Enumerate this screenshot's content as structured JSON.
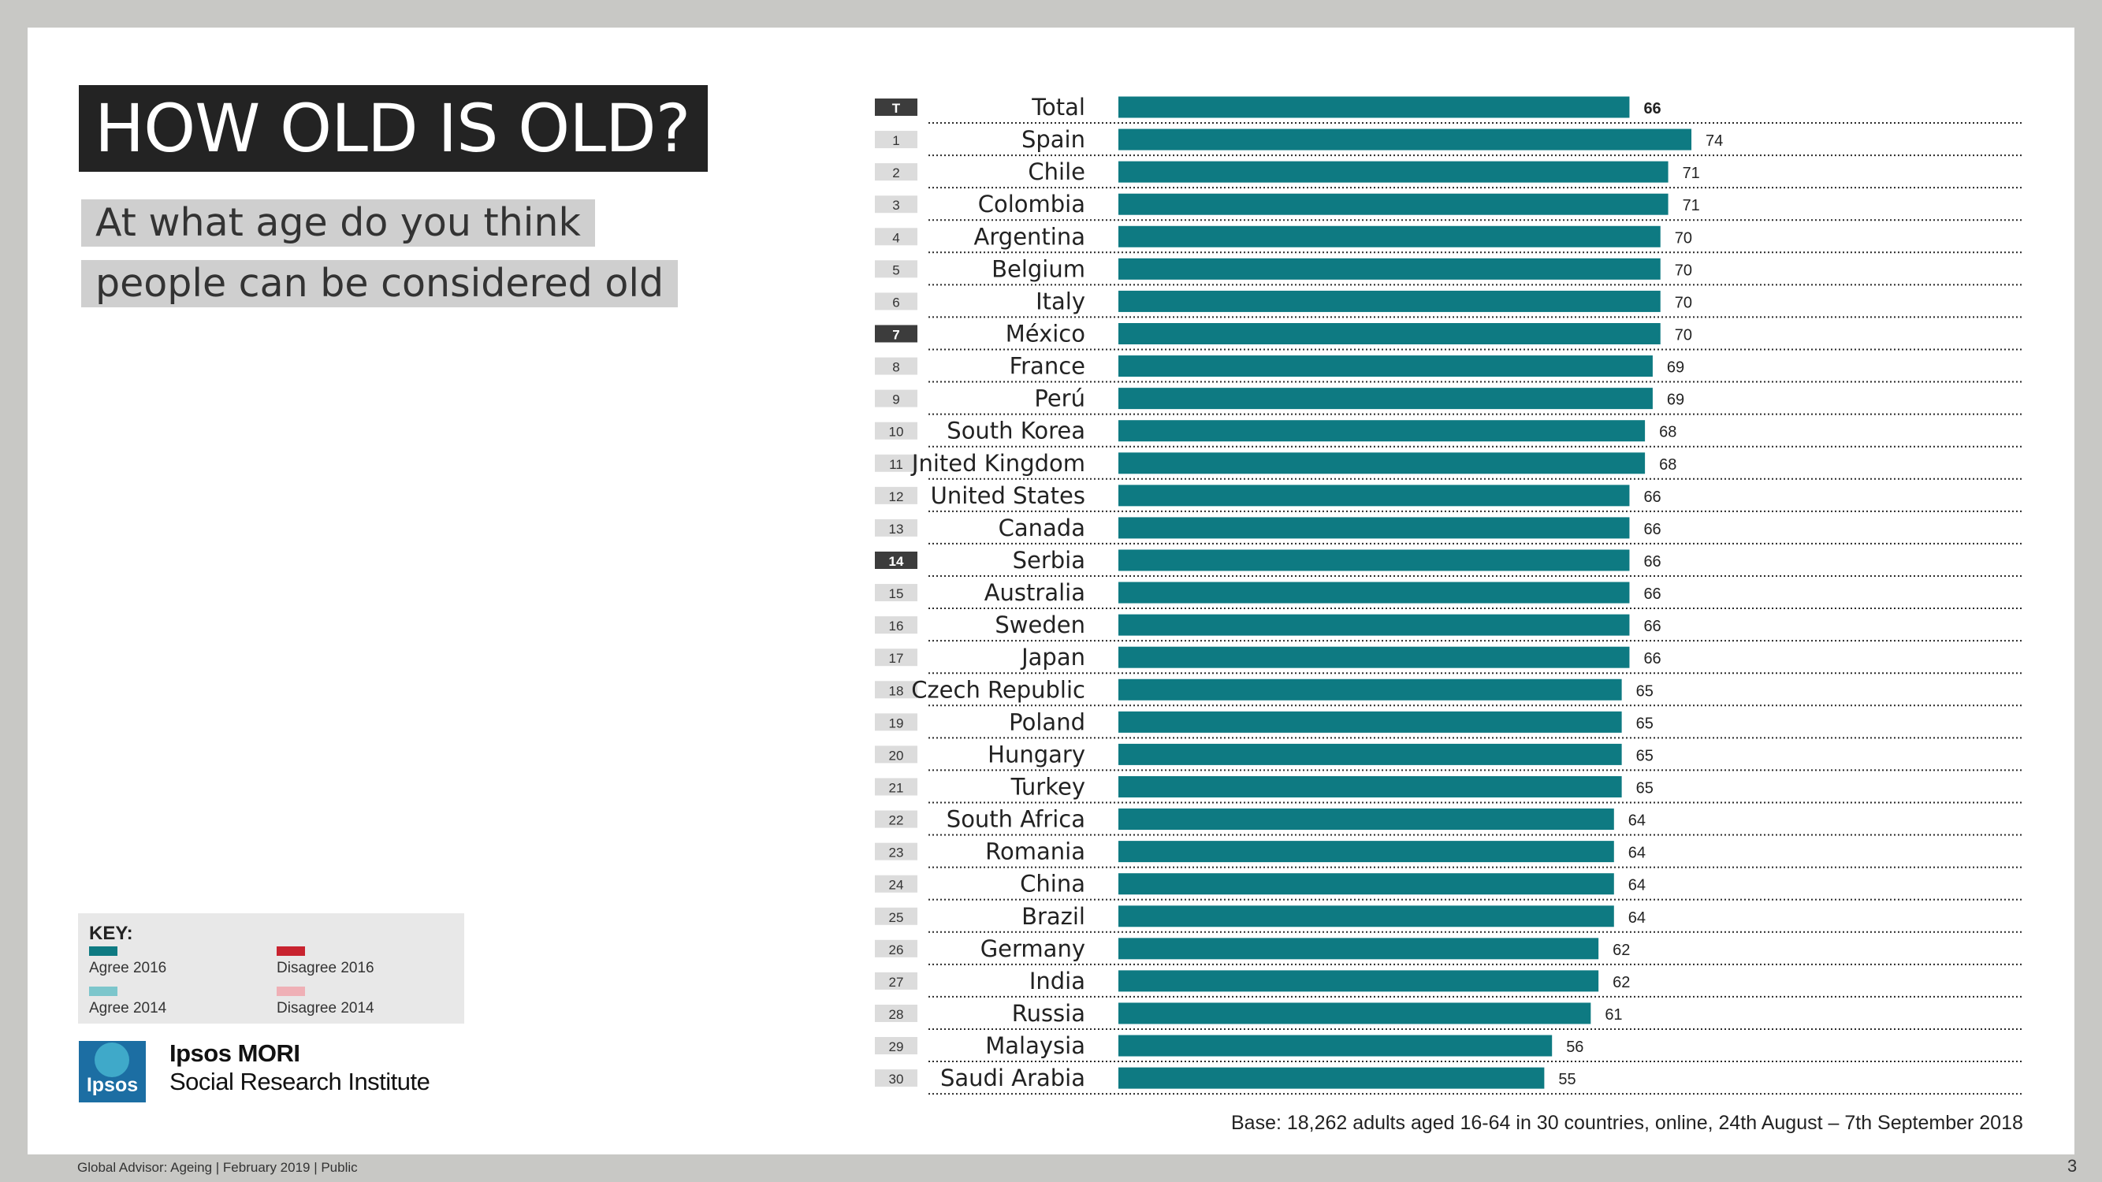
{
  "title": "HOW OLD IS OLD?",
  "subtitle_line1": "At what age do you think",
  "subtitle_line2": "people can be considered old",
  "colors": {
    "bar": "#0e7a82",
    "rank_badge": "#dcdcdc",
    "rank_badge_highlight": "#3c3c3c",
    "title_bg": "#232323",
    "agree_2016": "#0e7a82",
    "agree_2014": "#7cc6cc",
    "disagree_2016": "#c8232f",
    "disagree_2014": "#efb0b6"
  },
  "chart_data": {
    "type": "bar",
    "orientation": "horizontal",
    "rank_labels": [
      "T",
      "1",
      "2",
      "3",
      "4",
      "5",
      "6",
      "7",
      "8",
      "9",
      "10",
      "11",
      "12",
      "13",
      "14",
      "15",
      "16",
      "17",
      "18",
      "19",
      "20",
      "21",
      "22",
      "23",
      "24",
      "25",
      "26",
      "27",
      "28",
      "29",
      "30"
    ],
    "categories": [
      "Total",
      "Spain",
      "Chile",
      "Colombia",
      "Argentina",
      "Belgium",
      "Italy",
      "México",
      "France",
      "Perú",
      "South Korea",
      "Jnited Kingdom",
      "United States",
      "Canada",
      "Serbia",
      "Australia",
      "Sweden",
      "Japan",
      "Czech Republic",
      "Poland",
      "Hungary",
      "Turkey",
      "South Africa",
      "Romania",
      "China",
      "Brazil",
      "Germany",
      "India",
      "Russia",
      "Malaysia",
      "Saudi Arabia"
    ],
    "values": [
      66,
      74,
      71,
      71,
      70,
      70,
      70,
      70,
      69,
      69,
      68,
      68,
      66,
      66,
      66,
      66,
      66,
      66,
      65,
      65,
      65,
      65,
      64,
      64,
      64,
      64,
      62,
      62,
      61,
      56,
      55
    ],
    "highlight_ranks": [
      "T",
      "7",
      "14"
    ],
    "bold_value_categories": [
      "Total"
    ],
    "grid": false,
    "row_separators": "dotted"
  },
  "key": {
    "title": "KEY:",
    "items": [
      {
        "label": "Agree 2016"
      },
      {
        "label": "Disagree 2016"
      },
      {
        "label": "Agree 2014"
      },
      {
        "label": "Disagree 2014"
      }
    ]
  },
  "brand": {
    "logo_text": "Ipsos",
    "line1": "Ipsos MORI",
    "line2": "Social Research Institute"
  },
  "base_note": "Base: 18,262 adults aged 16-64 in 30 countries, online, 24th August – 7th September 2018",
  "footer": "Global Advisor: Ageing | February 2019 | Public",
  "page_number": "3"
}
